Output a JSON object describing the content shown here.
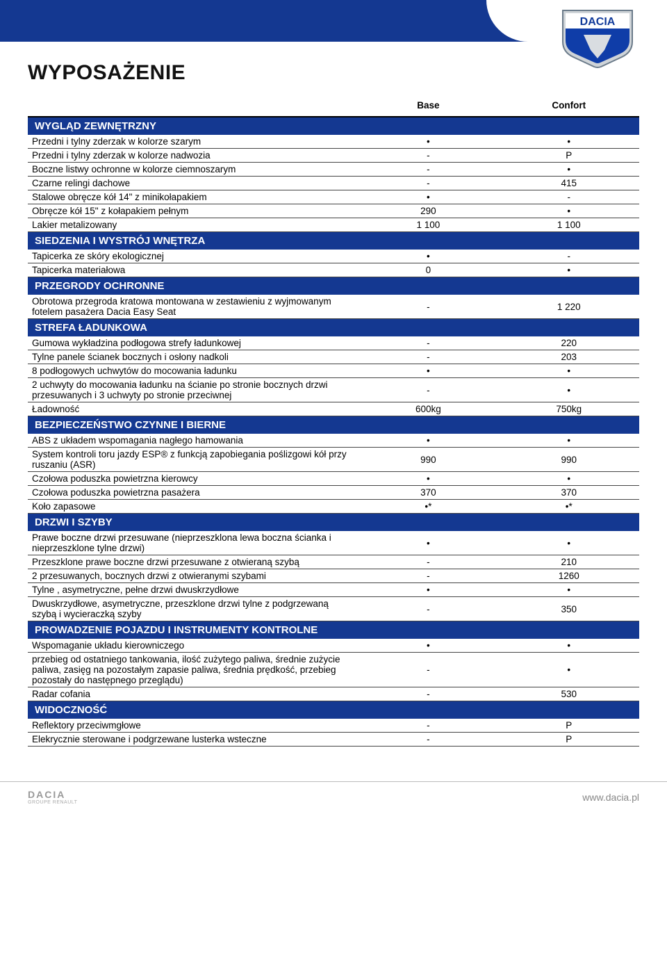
{
  "brand": "DACIA",
  "page_title": "WYPOSAŻENIE",
  "columns": [
    "Base",
    "Confort"
  ],
  "footer_brand": "DACIA",
  "footer_sub": "GROUPE RENAULT",
  "footer_url": "www.dacia.pl",
  "sections": [
    {
      "title": "WYGLĄD ZEWNĘTRZNY",
      "rows": [
        {
          "label": "Przedni i tylny zderzak w kolorze szarym",
          "v": [
            "•",
            "•"
          ]
        },
        {
          "label": "Przedni i tylny zderzak w kolorze nadwozia",
          "v": [
            "-",
            "P"
          ]
        },
        {
          "label": "Boczne listwy ochronne w kolorze ciemnoszarym",
          "v": [
            "-",
            "•"
          ]
        },
        {
          "label": "Czarne relingi dachowe",
          "v": [
            "-",
            "415"
          ]
        },
        {
          "label": "Stalowe obręcze kół 14\" z minikołapakiem",
          "v": [
            "•",
            "-"
          ]
        },
        {
          "label": "Obręcze kół 15\" z kołapakiem pełnym",
          "v": [
            "290",
            "•"
          ]
        },
        {
          "label": "Lakier metalizowany",
          "v": [
            "1 100",
            "1 100"
          ]
        }
      ]
    },
    {
      "title": "SIEDZENIA I WYSTRÓJ WNĘTRZA",
      "rows": [
        {
          "label": "Tapicerka ze skóry ekologicznej",
          "v": [
            "•",
            "-"
          ]
        },
        {
          "label": "Tapicerka materiałowa",
          "v": [
            "0",
            "•"
          ]
        }
      ]
    },
    {
      "title": "PRZEGRODY OCHRONNE",
      "rows": [
        {
          "label": "Obrotowa przegroda kratowa montowana w zestawieniu z wyjmowanym fotelem pasażera Dacia Easy Seat",
          "v": [
            "-",
            "1 220"
          ]
        }
      ]
    },
    {
      "title": "STREFA ŁADUNKOWA",
      "rows": [
        {
          "label": "Gumowa wykładzina podłogowa strefy ładunkowej",
          "v": [
            "-",
            "220"
          ]
        },
        {
          "label": "Tylne panele ścianek bocznych i osłony nadkoli",
          "v": [
            "-",
            "203"
          ]
        },
        {
          "label": "8 podłogowych uchwytów do mocowania ładunku",
          "v": [
            "•",
            "•"
          ]
        },
        {
          "label": "2 uchwyty do mocowania ładunku na ścianie po stronie bocznych drzwi przesuwanych i 3 uchwyty po stronie przeciwnej",
          "v": [
            "-",
            "•"
          ]
        },
        {
          "label": "Ładowność",
          "v": [
            "600kg",
            "750kg"
          ]
        }
      ]
    },
    {
      "title": "BEZPIECZEŃSTWO CZYNNE I BIERNE",
      "rows": [
        {
          "label": "ABS z układem wspomagania nagłego hamowania",
          "v": [
            "•",
            "•"
          ]
        },
        {
          "label": "System kontroli toru jazdy ESP® z funkcją zapobiegania poślizgowi kół przy ruszaniu (ASR)",
          "v": [
            "990",
            "990"
          ]
        },
        {
          "label": "Czołowa poduszka powietrzna kierowcy",
          "v": [
            "•",
            "•"
          ]
        },
        {
          "label": "Czołowa poduszka powietrzna pasażera",
          "v": [
            "370",
            "370"
          ]
        },
        {
          "label": "Koło zapasowe",
          "v": [
            "•*",
            "•*"
          ]
        }
      ]
    },
    {
      "title": "DRZWI I SZYBY",
      "rows": [
        {
          "label": "Prawe boczne drzwi przesuwane (nieprzeszklona lewa boczna ścianka i nieprzeszklone tylne drzwi)",
          "v": [
            "•",
            "•"
          ]
        },
        {
          "label": "Przeszklone prawe boczne drzwi przesuwane z otwieraną szybą",
          "v": [
            "-",
            "210"
          ]
        },
        {
          "label": "2 przesuwanych, bocznych drzwi z otwieranymi szybami",
          "v": [
            "-",
            "1260"
          ]
        },
        {
          "label": "Tylne , asymetryczne, pełne drzwi dwuskrzydłowe",
          "v": [
            "•",
            "•"
          ]
        },
        {
          "label": "Dwuskrzydłowe, asymetryczne, przeszklone drzwi tylne z podgrzewaną szybą i wycieraczką szyby",
          "v": [
            "-",
            "350"
          ]
        }
      ]
    },
    {
      "title": "PROWADZENIE POJAZDU I INSTRUMENTY KONTROLNE",
      "rows": [
        {
          "label": "Wspomaganie układu kierowniczego",
          "v": [
            "•",
            "•"
          ]
        },
        {
          "label": "przebieg od ostatniego tankowania, ilość zużytego paliwa, średnie zużycie paliwa, zasięg na pozostałym zapasie paliwa, średnia prędkość, przebieg pozostały do następnego przeglądu)",
          "v": [
            "-",
            "•"
          ]
        },
        {
          "label": "Radar cofania",
          "v": [
            "-",
            "530"
          ]
        }
      ]
    },
    {
      "title": "WIDOCZNOŚĆ",
      "rows": [
        {
          "label": "Reflektory przeciwmgłowe",
          "v": [
            "-",
            "P"
          ]
        },
        {
          "label": "Elekrycznie sterowane i podgrzewane lusterka wsteczne",
          "v": [
            "-",
            "P"
          ]
        }
      ]
    }
  ]
}
